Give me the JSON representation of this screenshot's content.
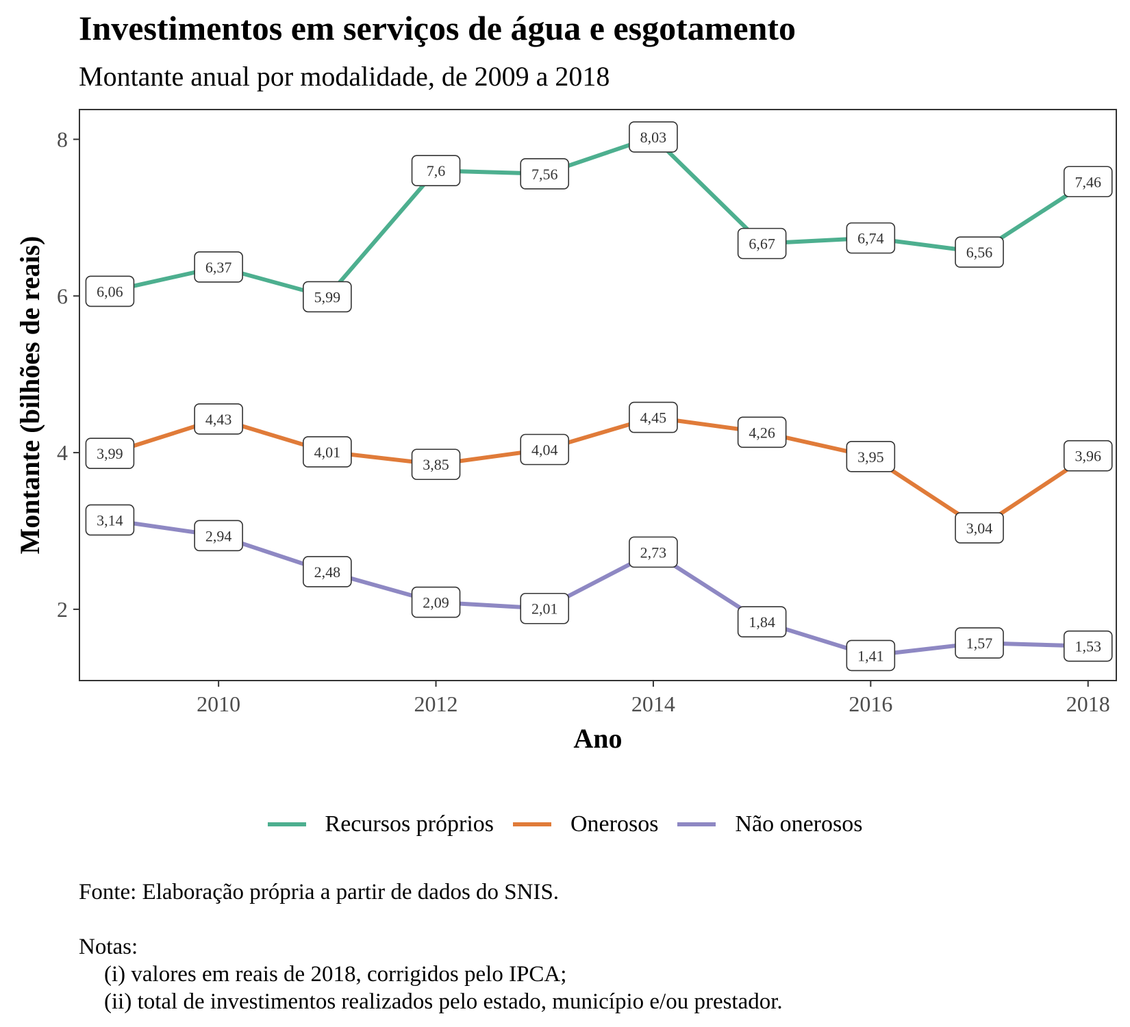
{
  "title": "Investimentos em serviços de água e esgotamento",
  "subtitle": "Montante anual por modalidade, de 2009 a 2018",
  "caption": {
    "source": "Fonte: Elaboração própria a partir de dados do SNIS.",
    "notes_heading": "Notas:",
    "notes": [
      "(i) valores em reais de 2018, corrigidos pelo IPCA;",
      "(ii) total de investimentos realizados pelo estado, município e/ou prestador."
    ]
  },
  "chart_data": {
    "type": "line",
    "title": "Investimentos em serviços de água e esgotamento",
    "subtitle": "Montante anual por modalidade, de 2009 a 2018",
    "xlabel": "Ano",
    "ylabel": "Montante (bilhões de reais)",
    "x": [
      2009,
      2010,
      2011,
      2012,
      2013,
      2014,
      2015,
      2016,
      2017,
      2018
    ],
    "xlim": [
      2008.72,
      2018.26
    ],
    "ylim": [
      1.09,
      8.38
    ],
    "x_ticks": [
      2010,
      2012,
      2014,
      2016,
      2018
    ],
    "x_tick_labels": [
      "2010",
      "2012",
      "2014",
      "2016",
      "2018"
    ],
    "y_ticks": [
      2,
      4,
      6,
      8
    ],
    "y_tick_labels": [
      "2",
      "4",
      "6",
      "8"
    ],
    "grid": false,
    "legend_position": "bottom",
    "series": [
      {
        "name": "Recursos próprios",
        "color": "#4daf8f",
        "values": [
          6.06,
          6.37,
          5.99,
          7.6,
          7.56,
          8.03,
          6.67,
          6.74,
          6.56,
          7.46
        ],
        "labels": [
          "6,06",
          "6,37",
          "5,99",
          "7,6",
          "7,56",
          "8,03",
          "6,67",
          "6,74",
          "6,56",
          "7,46"
        ]
      },
      {
        "name": "Onerosos",
        "color": "#e07b39",
        "values": [
          3.99,
          4.43,
          4.01,
          3.85,
          4.04,
          4.45,
          4.26,
          3.95,
          3.04,
          3.96
        ],
        "labels": [
          "3,99",
          "4,43",
          "4,01",
          "3,85",
          "4,04",
          "4,45",
          "4,26",
          "3,95",
          "3,04",
          "3,96"
        ]
      },
      {
        "name": "Não onerosos",
        "color": "#8e88c3",
        "values": [
          3.14,
          2.94,
          2.48,
          2.09,
          2.01,
          2.73,
          1.84,
          1.41,
          1.57,
          1.53
        ],
        "labels": [
          "3,14",
          "2,94",
          "2,48",
          "2,09",
          "2,01",
          "2,73",
          "1,84",
          "1,41",
          "1,57",
          "1,53"
        ]
      }
    ]
  }
}
